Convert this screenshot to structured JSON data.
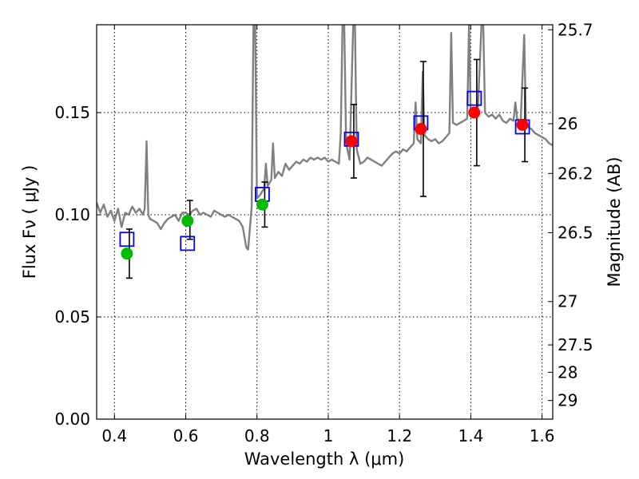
{
  "chart_data": {
    "type": "scatter",
    "xlabel": "Wavelength  λ (μm)",
    "ylabel": "Flux  Fν  ( μJy )",
    "y2label": "Magnitude (AB)",
    "xlim": [
      0.35,
      1.63
    ],
    "ylim": [
      0.0,
      0.193
    ],
    "grid": true,
    "x_ticks": [
      {
        "value": 0.4,
        "label": "0.4"
      },
      {
        "value": 0.6,
        "label": "0.6"
      },
      {
        "value": 0.8,
        "label": "0.8"
      },
      {
        "value": 1.0,
        "label": "1"
      },
      {
        "value": 1.2,
        "label": "1.2"
      },
      {
        "value": 1.4,
        "label": "1.4"
      },
      {
        "value": 1.6,
        "label": "1.6"
      }
    ],
    "y_ticks": [
      {
        "value": 0.0,
        "label": "0.00"
      },
      {
        "value": 0.05,
        "label": "0.05"
      },
      {
        "value": 0.1,
        "label": "0.10"
      },
      {
        "value": 0.15,
        "label": "0.15"
      }
    ],
    "y2_ticks": [
      {
        "value": 25.7,
        "label": "25.7"
      },
      {
        "value": 26.0,
        "label": "26"
      },
      {
        "value": 26.2,
        "label": "26.2"
      },
      {
        "value": 26.5,
        "label": "26.5"
      },
      {
        "value": 27.0,
        "label": "27"
      },
      {
        "value": 27.5,
        "label": "27.5"
      },
      {
        "value": 28.0,
        "label": "28"
      },
      {
        "value": 29.0,
        "label": "29"
      }
    ],
    "series": [
      {
        "kind": "spectrum",
        "color": "#808080",
        "points": [
          [
            0.35,
            0.106
          ],
          [
            0.36,
            0.101
          ],
          [
            0.37,
            0.105
          ],
          [
            0.38,
            0.099
          ],
          [
            0.39,
            0.102
          ],
          [
            0.4,
            0.097
          ],
          [
            0.41,
            0.103
          ],
          [
            0.42,
            0.094
          ],
          [
            0.43,
            0.101
          ],
          [
            0.44,
            0.1
          ],
          [
            0.45,
            0.104
          ],
          [
            0.46,
            0.101
          ],
          [
            0.47,
            0.103
          ],
          [
            0.48,
            0.1
          ],
          [
            0.485,
            0.103
          ],
          [
            0.49,
            0.136
          ],
          [
            0.495,
            0.1
          ],
          [
            0.5,
            0.098
          ],
          [
            0.51,
            0.097
          ],
          [
            0.52,
            0.096
          ],
          [
            0.53,
            0.093
          ],
          [
            0.54,
            0.096
          ],
          [
            0.55,
            0.098
          ],
          [
            0.56,
            0.099
          ],
          [
            0.57,
            0.1
          ],
          [
            0.58,
            0.097
          ],
          [
            0.59,
            0.101
          ],
          [
            0.6,
            0.101
          ],
          [
            0.61,
            0.1
          ],
          [
            0.62,
            0.102
          ],
          [
            0.63,
            0.103
          ],
          [
            0.64,
            0.1
          ],
          [
            0.65,
            0.101
          ],
          [
            0.66,
            0.1
          ],
          [
            0.67,
            0.099
          ],
          [
            0.68,
            0.102
          ],
          [
            0.69,
            0.101
          ],
          [
            0.7,
            0.1
          ],
          [
            0.71,
            0.099
          ],
          [
            0.72,
            0.1
          ],
          [
            0.73,
            0.099
          ],
          [
            0.74,
            0.098
          ],
          [
            0.75,
            0.097
          ],
          [
            0.76,
            0.094
          ],
          [
            0.77,
            0.084
          ],
          [
            0.775,
            0.083
          ],
          [
            0.78,
            0.093
          ],
          [
            0.785,
            0.104
          ],
          [
            0.79,
            0.193
          ],
          [
            0.795,
            0.193
          ],
          [
            0.8,
            0.108
          ],
          [
            0.81,
            0.11
          ],
          [
            0.82,
            0.113
          ],
          [
            0.825,
            0.125
          ],
          [
            0.83,
            0.114
          ],
          [
            0.84,
            0.117
          ],
          [
            0.845,
            0.135
          ],
          [
            0.85,
            0.118
          ],
          [
            0.86,
            0.121
          ],
          [
            0.87,
            0.119
          ],
          [
            0.88,
            0.125
          ],
          [
            0.89,
            0.122
          ],
          [
            0.9,
            0.124
          ],
          [
            0.91,
            0.126
          ],
          [
            0.92,
            0.125
          ],
          [
            0.93,
            0.127
          ],
          [
            0.94,
            0.126
          ],
          [
            0.95,
            0.128
          ],
          [
            0.96,
            0.127
          ],
          [
            0.97,
            0.128
          ],
          [
            0.98,
            0.127
          ],
          [
            0.99,
            0.128
          ],
          [
            1.0,
            0.126
          ],
          [
            1.01,
            0.127
          ],
          [
            1.02,
            0.126
          ],
          [
            1.03,
            0.125
          ],
          [
            1.035,
            0.14
          ],
          [
            1.04,
            0.193
          ],
          [
            1.045,
            0.193
          ],
          [
            1.05,
            0.135
          ],
          [
            1.06,
            0.127
          ],
          [
            1.07,
            0.193
          ],
          [
            1.075,
            0.193
          ],
          [
            1.08,
            0.132
          ],
          [
            1.09,
            0.125
          ],
          [
            1.1,
            0.126
          ],
          [
            1.11,
            0.128
          ],
          [
            1.12,
            0.127
          ],
          [
            1.13,
            0.126
          ],
          [
            1.14,
            0.125
          ],
          [
            1.15,
            0.124
          ],
          [
            1.16,
            0.126
          ],
          [
            1.17,
            0.128
          ],
          [
            1.18,
            0.13
          ],
          [
            1.19,
            0.131
          ],
          [
            1.2,
            0.13
          ],
          [
            1.21,
            0.132
          ],
          [
            1.22,
            0.131
          ],
          [
            1.23,
            0.133
          ],
          [
            1.24,
            0.135
          ],
          [
            1.245,
            0.155
          ],
          [
            1.25,
            0.137
          ],
          [
            1.26,
            0.135
          ],
          [
            1.265,
            0.17
          ],
          [
            1.27,
            0.139
          ],
          [
            1.28,
            0.137
          ],
          [
            1.29,
            0.136
          ],
          [
            1.3,
            0.137
          ],
          [
            1.31,
            0.135
          ],
          [
            1.32,
            0.136
          ],
          [
            1.33,
            0.138
          ],
          [
            1.34,
            0.14
          ],
          [
            1.345,
            0.189
          ],
          [
            1.35,
            0.145
          ],
          [
            1.36,
            0.144
          ],
          [
            1.37,
            0.145
          ],
          [
            1.38,
            0.146
          ],
          [
            1.39,
            0.147
          ],
          [
            1.395,
            0.193
          ],
          [
            1.4,
            0.148
          ],
          [
            1.41,
            0.15
          ],
          [
            1.42,
            0.152
          ],
          [
            1.43,
            0.193
          ],
          [
            1.435,
            0.193
          ],
          [
            1.44,
            0.15
          ],
          [
            1.45,
            0.148
          ],
          [
            1.46,
            0.149
          ],
          [
            1.47,
            0.147
          ],
          [
            1.48,
            0.149
          ],
          [
            1.49,
            0.146
          ],
          [
            1.5,
            0.145
          ],
          [
            1.51,
            0.147
          ],
          [
            1.52,
            0.146
          ],
          [
            1.525,
            0.155
          ],
          [
            1.53,
            0.147
          ],
          [
            1.54,
            0.146
          ],
          [
            1.55,
            0.188
          ],
          [
            1.555,
            0.145
          ],
          [
            1.56,
            0.143
          ],
          [
            1.57,
            0.142
          ],
          [
            1.58,
            0.14
          ],
          [
            1.59,
            0.139
          ],
          [
            1.6,
            0.138
          ],
          [
            1.61,
            0.137
          ],
          [
            1.62,
            0.135
          ],
          [
            1.63,
            0.134
          ]
        ]
      },
      {
        "kind": "model_photometry",
        "marker": "open-square",
        "color": "#0000ff",
        "x": [
          0.435,
          0.605,
          0.815,
          1.065,
          1.26,
          1.41,
          1.545
        ],
        "y": [
          0.088,
          0.086,
          0.11,
          0.137,
          0.145,
          0.157,
          0.143
        ]
      },
      {
        "kind": "observed_optical",
        "marker": "filled-circle",
        "color": "#00bb00",
        "x": [
          0.435,
          0.605,
          0.815
        ],
        "y": [
          0.081,
          0.097,
          0.105
        ],
        "err_low": [
          0.012,
          0.009,
          0.011
        ],
        "err_high": [
          0.012,
          0.01,
          0.011
        ]
      },
      {
        "kind": "observed_nir",
        "marker": "filled-circle",
        "color": "#ff0000",
        "x": [
          1.065,
          1.26,
          1.41,
          1.545
        ],
        "y": [
          0.136,
          0.142,
          0.15,
          0.144
        ],
        "err_low": [
          0.018,
          0.033,
          0.026,
          0.018
        ],
        "err_high": [
          0.018,
          0.033,
          0.026,
          0.018
        ]
      }
    ]
  }
}
